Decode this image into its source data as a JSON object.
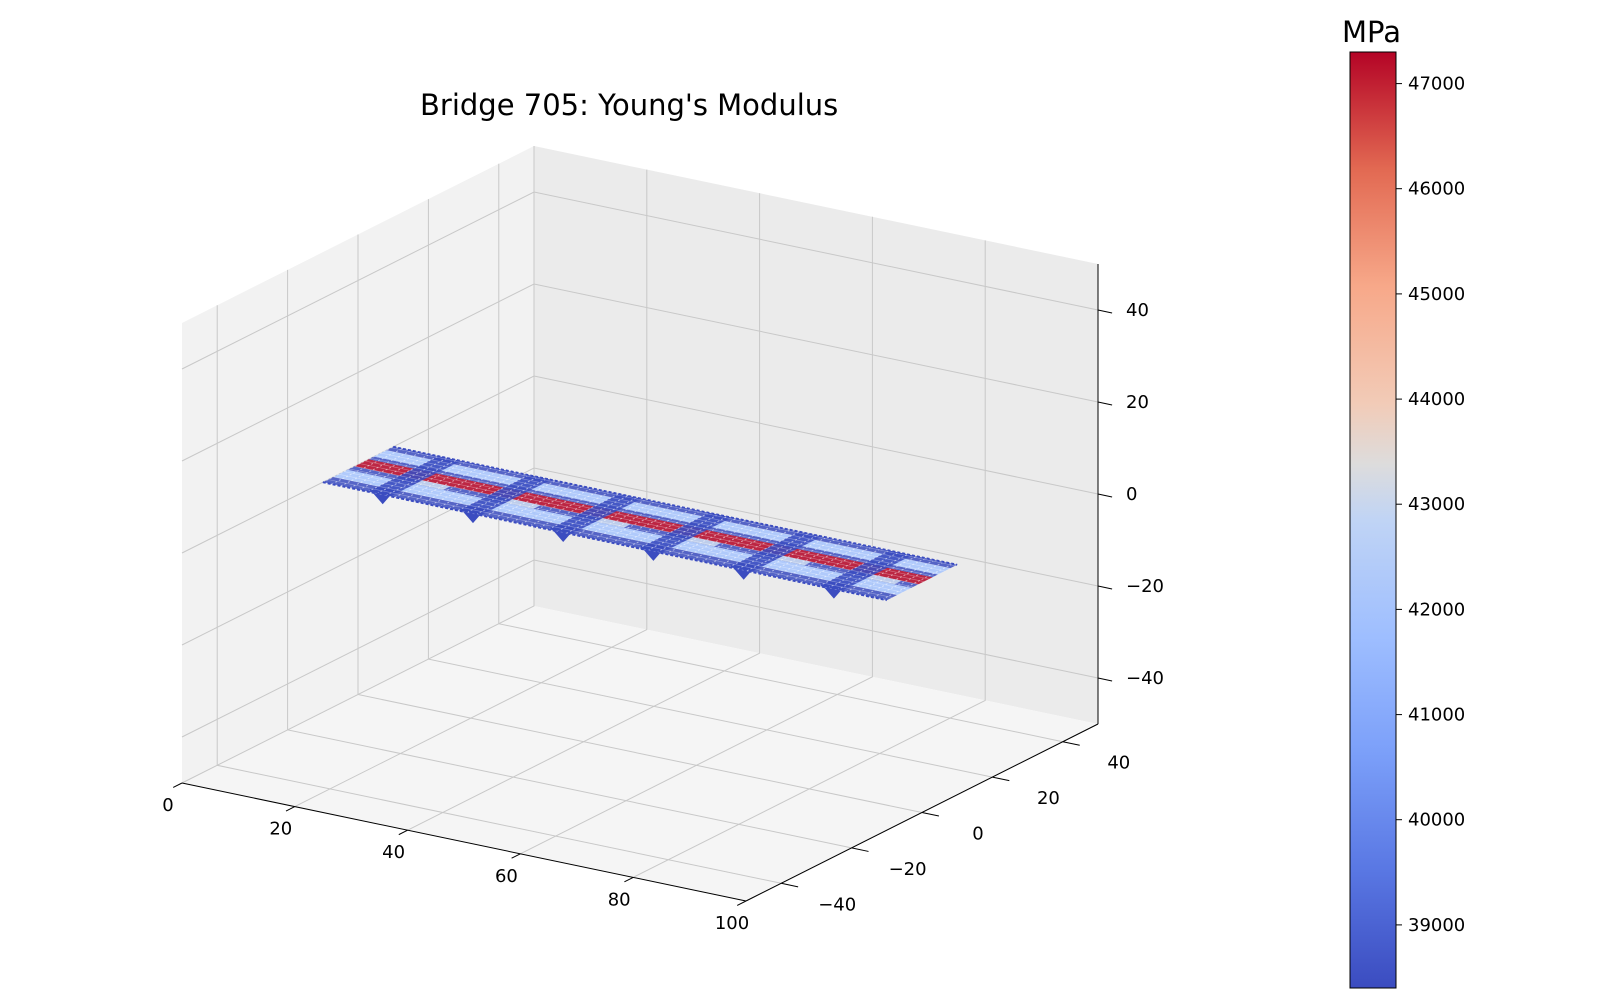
{
  "chart_data": {
    "type": "scatter",
    "projection": "3d",
    "title": "Bridge 705: Young's Modulus",
    "xlabel": "",
    "ylabel": "",
    "zlabel": "",
    "xlim": [
      0,
      100
    ],
    "ylim": [
      -50,
      50
    ],
    "zlim": [
      -50,
      50
    ],
    "x_ticks": [
      "0",
      "20",
      "40",
      "60",
      "80",
      "100"
    ],
    "y_ticks": [
      "−40",
      "−20",
      "0",
      "20",
      "40"
    ],
    "z_ticks": [
      "−40",
      "−20",
      "0",
      "20",
      "40"
    ],
    "grid": true,
    "colormap": "coolwarm",
    "colorbar": {
      "label": "MPa",
      "min": 38400,
      "max": 47300,
      "ticks": [
        "39000",
        "40000",
        "41000",
        "42000",
        "43000",
        "44000",
        "45000",
        "46000",
        "47000"
      ],
      "tick_values": [
        39000,
        40000,
        41000,
        42000,
        43000,
        44000,
        45000,
        46000,
        47000
      ]
    },
    "deck": {
      "x_range": [
        0,
        100
      ],
      "y_range": [
        -10,
        10
      ],
      "z": 0,
      "description": "bridge deck mesh with high-modulus girder strips"
    },
    "pier_positions_x": [
      10,
      26,
      42,
      58,
      74,
      90
    ],
    "colors": {
      "low": "#3b4cc0",
      "mid": "#dddddd",
      "high": "#b40426"
    }
  }
}
